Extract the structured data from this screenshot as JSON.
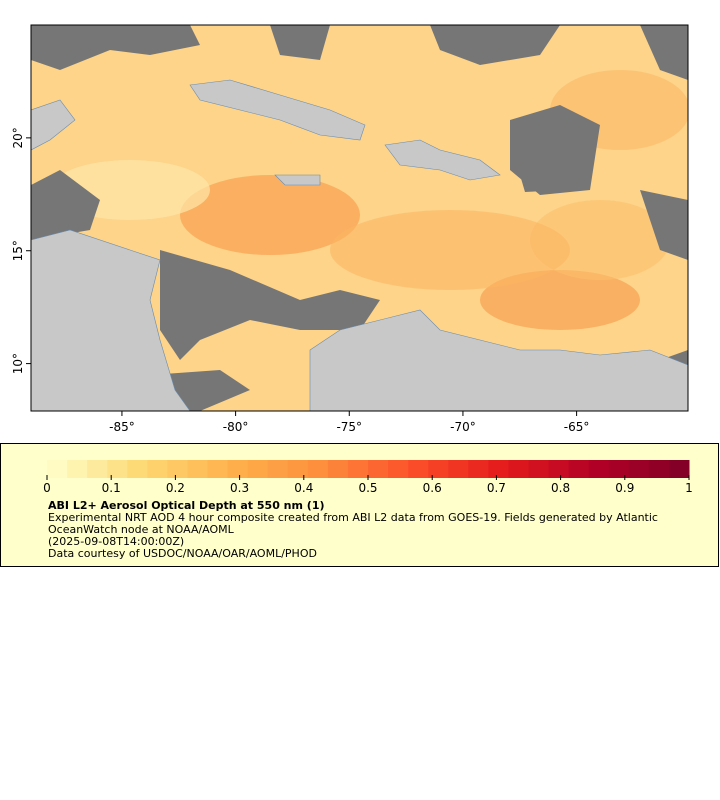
{
  "map": {
    "xlim": [
      -89,
      -60.1
    ],
    "ylim": [
      7.9,
      25
    ],
    "xticks": [
      {
        "value": -85,
        "label": "-85°"
      },
      {
        "value": -80,
        "label": "-80°"
      },
      {
        "value": -75,
        "label": "-75°"
      },
      {
        "value": -70,
        "label": "-70°"
      },
      {
        "value": -65,
        "label": "-65°"
      }
    ],
    "yticks": [
      {
        "value": 10,
        "label": "10°"
      },
      {
        "value": 15,
        "label": "15°"
      },
      {
        "value": 20,
        "label": "20°"
      }
    ]
  },
  "colorbar": {
    "lim": [
      0,
      1
    ],
    "ticks": [
      0,
      0.1,
      0.2,
      0.3,
      0.4,
      0.5,
      0.6,
      0.7,
      0.8,
      0.9,
      1
    ],
    "colormap": [
      "#ffffcc",
      "#fed976",
      "#feb24c",
      "#fd8d3c",
      "#fc4e2a",
      "#e31a1c",
      "#b10026",
      "#800026"
    ],
    "steps": 32
  },
  "caption": {
    "title": "ABI L2+ Aerosol Optical Depth at 550 nm (1)",
    "description": "Experimental NRT AOD 4 hour composite created from ABI L2 data from GOES-19. Fields generated by Atlantic OceanWatch node at NOAA/AOML",
    "time": "(2025-09-08T14:00:00Z)",
    "credit": "Data courtesy of USDOC/NOAA/OAR/AOML/PHOD"
  }
}
